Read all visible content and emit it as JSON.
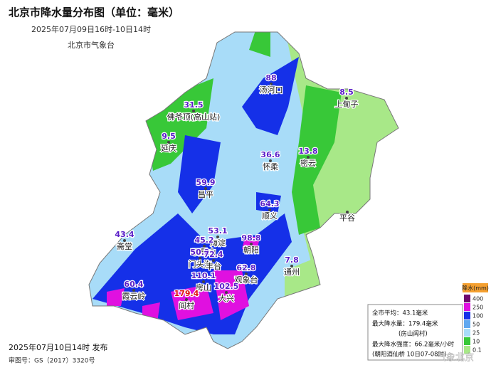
{
  "title": "北京市降水量分布图（单位：毫米）",
  "subtitle": "2025年07月09日16时-10日14时",
  "agency": "北京市气象台",
  "stations": [
    {
      "name": "汤河口",
      "value": 88
    },
    {
      "name": "佛爷顶(高山站)",
      "value": 31.5
    },
    {
      "name": "延庆",
      "value": 9.5
    },
    {
      "name": "上甸子",
      "value": 8.5
    },
    {
      "name": "密云",
      "value": 13.8
    },
    {
      "name": "怀柔",
      "value": 36.6
    },
    {
      "name": "昌平",
      "value": 59.9
    },
    {
      "name": "顺义",
      "value": 64.3
    },
    {
      "name": "平谷",
      "value": null
    },
    {
      "name": "斋堂",
      "value": 43.4
    },
    {
      "name": "海淀",
      "value": 53.1
    },
    {
      "name": "朝阳",
      "value": 98.8
    },
    {
      "name": "石景山",
      "value": 45.2
    },
    {
      "name": "门头沟",
      "value": 50.2
    },
    {
      "name": "丰台",
      "value": 72.4
    },
    {
      "name": "观象台",
      "value": 62.8
    },
    {
      "name": "通州",
      "value": 7.8
    },
    {
      "name": "房山",
      "value": 110.1
    },
    {
      "name": "大兴",
      "value": 102.5
    },
    {
      "name": "阎村",
      "value": 179.4
    },
    {
      "name": "霞云岭",
      "value": 60.4
    }
  ],
  "legend": {
    "title": "降水(mm)",
    "levels": [
      {
        "value": 400,
        "color": "#6e0a6e"
      },
      {
        "value": 250,
        "color": "#e010e0"
      },
      {
        "value": 100,
        "color": "#1530e8"
      },
      {
        "value": 50,
        "color": "#60a8f0"
      },
      {
        "value": 25,
        "color": "#a8dcf8"
      },
      {
        "value": 10,
        "color": "#38c838"
      },
      {
        "value": 0.1,
        "color": "#a8e888"
      }
    ]
  },
  "stats": [
    "全市平均：43.1毫米",
    "最大降水量：179.4毫米",
    "(房山阎村)",
    "最大降水强度：66.2毫米/小时",
    "(朝阳酒仙桥 10日07-08时)"
  ],
  "footer": {
    "issued": "2025年07月10日14时 发布",
    "approval": "审图号：GS（2017）3320号"
  },
  "watermark": "气象北京"
}
